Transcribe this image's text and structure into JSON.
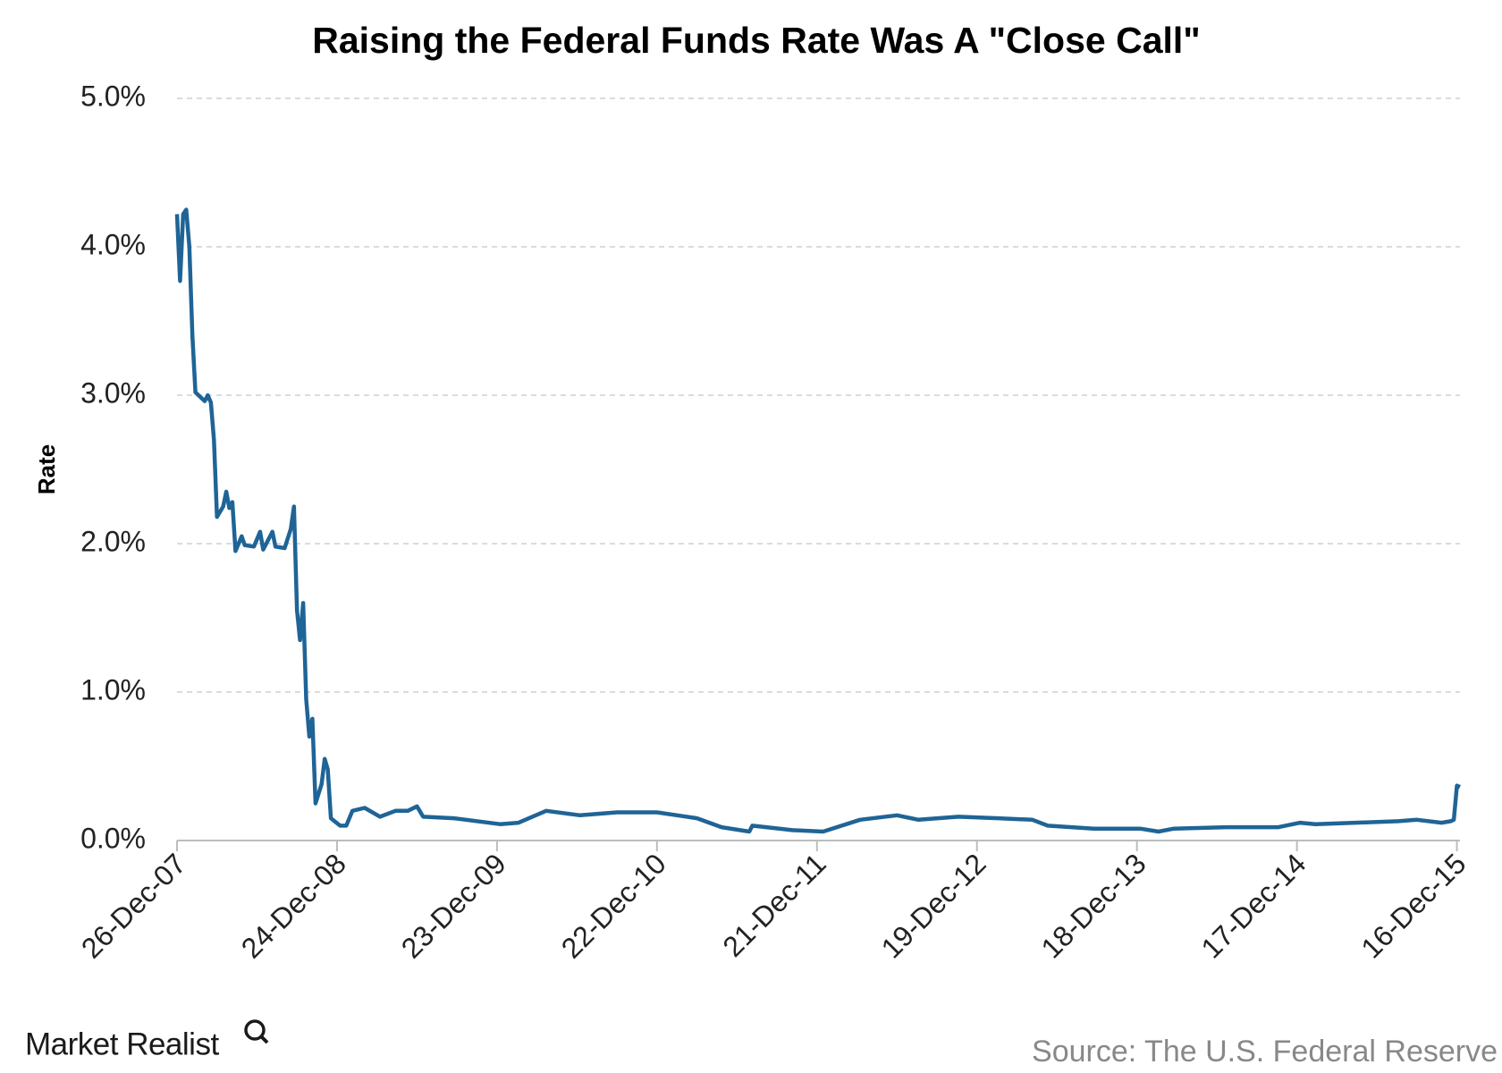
{
  "chart_data": {
    "type": "line",
    "title": "Raising the Federal Funds Rate Was A \"Close Call\"",
    "y_label": "Rate",
    "source": "Source: The U.S. Federal Reserve",
    "brand": "Market Realist",
    "grid": true,
    "xlim": [
      "2007-12-26",
      "2015-12-23"
    ],
    "ylim": [
      0,
      5
    ],
    "yticks": [
      {
        "value": 0,
        "label": "0.0%"
      },
      {
        "value": 1,
        "label": "1.0%"
      },
      {
        "value": 2,
        "label": "2.0%"
      },
      {
        "value": 3,
        "label": "3.0%"
      },
      {
        "value": 4,
        "label": "4.0%"
      },
      {
        "value": 5,
        "label": "5.0%"
      }
    ],
    "xticks": [
      {
        "value": "2007-12-26",
        "label": "26-Dec-07"
      },
      {
        "value": "2008-12-24",
        "label": "24-Dec-08"
      },
      {
        "value": "2009-12-23",
        "label": "23-Dec-09"
      },
      {
        "value": "2010-12-22",
        "label": "22-Dec-10"
      },
      {
        "value": "2011-12-21",
        "label": "21-Dec-11"
      },
      {
        "value": "2012-12-19",
        "label": "19-Dec-12"
      },
      {
        "value": "2013-12-18",
        "label": "18-Dec-13"
      },
      {
        "value": "2014-12-17",
        "label": "17-Dec-14"
      },
      {
        "value": "2015-12-16",
        "label": "16-Dec-15"
      }
    ],
    "x": [
      "2007-12-26",
      "2008-01-02",
      "2008-01-09",
      "2008-01-16",
      "2008-01-23",
      "2008-01-30",
      "2008-02-06",
      "2008-02-27",
      "2008-03-05",
      "2008-03-12",
      "2008-03-19",
      "2008-03-26",
      "2008-04-09",
      "2008-04-16",
      "2008-04-23",
      "2008-04-30",
      "2008-05-07",
      "2008-05-21",
      "2008-05-28",
      "2008-06-18",
      "2008-07-02",
      "2008-07-09",
      "2008-07-30",
      "2008-08-06",
      "2008-08-27",
      "2008-09-10",
      "2008-09-17",
      "2008-09-24",
      "2008-10-01",
      "2008-10-08",
      "2008-10-15",
      "2008-10-22",
      "2008-10-29",
      "2008-11-05",
      "2008-11-19",
      "2008-11-26",
      "2008-12-03",
      "2008-12-10",
      "2008-12-31",
      "2009-01-14",
      "2009-01-28",
      "2009-02-25",
      "2009-04-01",
      "2009-05-06",
      "2009-06-03",
      "2009-06-24",
      "2009-07-08",
      "2009-09-16",
      "2009-12-30",
      "2010-02-10",
      "2010-04-14",
      "2010-06-30",
      "2010-09-22",
      "2010-12-22",
      "2011-03-23",
      "2011-05-18",
      "2011-07-20",
      "2011-07-27",
      "2011-10-26",
      "2012-01-04",
      "2012-03-28",
      "2012-06-20",
      "2012-08-08",
      "2012-11-07",
      "2013-02-06",
      "2013-04-24",
      "2013-05-29",
      "2013-09-11",
      "2013-12-25",
      "2014-02-05",
      "2014-03-12",
      "2014-07-09",
      "2014-11-05",
      "2014-12-24",
      "2015-01-28",
      "2015-04-29",
      "2015-08-05",
      "2015-09-16",
      "2015-11-11",
      "2015-12-02",
      "2015-12-09",
      "2015-12-16",
      "2015-12-23"
    ],
    "series": [
      {
        "name": "Rate",
        "color": "#1f6496",
        "values": [
          4.22,
          3.77,
          4.22,
          4.25,
          4.0,
          3.4,
          3.02,
          2.96,
          3.0,
          2.95,
          2.7,
          2.18,
          2.25,
          2.35,
          2.24,
          2.28,
          1.95,
          2.05,
          1.99,
          1.98,
          2.08,
          1.96,
          2.08,
          1.98,
          1.97,
          2.1,
          2.25,
          1.55,
          1.35,
          1.6,
          0.95,
          0.7,
          0.82,
          0.25,
          0.38,
          0.55,
          0.48,
          0.15,
          0.1,
          0.1,
          0.2,
          0.22,
          0.16,
          0.2,
          0.2,
          0.23,
          0.16,
          0.15,
          0.11,
          0.12,
          0.2,
          0.17,
          0.19,
          0.19,
          0.15,
          0.09,
          0.06,
          0.1,
          0.07,
          0.06,
          0.14,
          0.17,
          0.14,
          0.16,
          0.15,
          0.14,
          0.1,
          0.08,
          0.08,
          0.06,
          0.08,
          0.09,
          0.09,
          0.12,
          0.11,
          0.12,
          0.13,
          0.14,
          0.12,
          0.13,
          0.14,
          0.37,
          0.36
        ]
      }
    ]
  }
}
